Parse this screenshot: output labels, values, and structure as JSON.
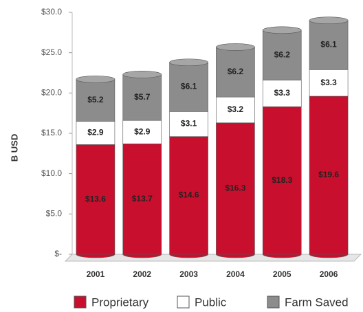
{
  "chart_data": {
    "type": "bar",
    "stacked": true,
    "y_label": "B USD",
    "categories": [
      "2001",
      "2002",
      "2003",
      "2004",
      "2005",
      "2006"
    ],
    "series": [
      {
        "name": "Proprietary",
        "color": "#c8102e",
        "values": [
          13.6,
          13.7,
          14.6,
          16.3,
          18.3,
          19.6
        ],
        "value_labels": [
          "$13.6",
          "$13.7",
          "$14.6",
          "$16.3",
          "$18.3",
          "$19.6"
        ]
      },
      {
        "name": "Public",
        "color": "#ffffff",
        "values": [
          2.9,
          2.9,
          3.1,
          3.2,
          3.3,
          3.3
        ],
        "value_labels": [
          "$2.9",
          "$2.9",
          "$3.1",
          "$3.2",
          "$3.3",
          "$3.3"
        ]
      },
      {
        "name": "Farm Saved",
        "color": "#8c8c8c",
        "values": [
          5.2,
          5.7,
          6.1,
          6.2,
          6.2,
          6.1
        ],
        "value_labels": [
          "$5.2",
          "$5.7",
          "$6.1",
          "$6.2",
          "$6.2",
          "$6.1"
        ]
      }
    ],
    "ylim": [
      0,
      30
    ],
    "yticks": [
      {
        "value": 0,
        "label": "$-"
      },
      {
        "value": 5,
        "label": "$5.0"
      },
      {
        "value": 10,
        "label": "$10.0"
      },
      {
        "value": 15,
        "label": "$15.0"
      },
      {
        "value": 20,
        "label": "$20.0"
      },
      {
        "value": 25,
        "label": "$25.0"
      },
      {
        "value": 30,
        "label": "$30.0"
      }
    ],
    "legend": "bottom"
  }
}
